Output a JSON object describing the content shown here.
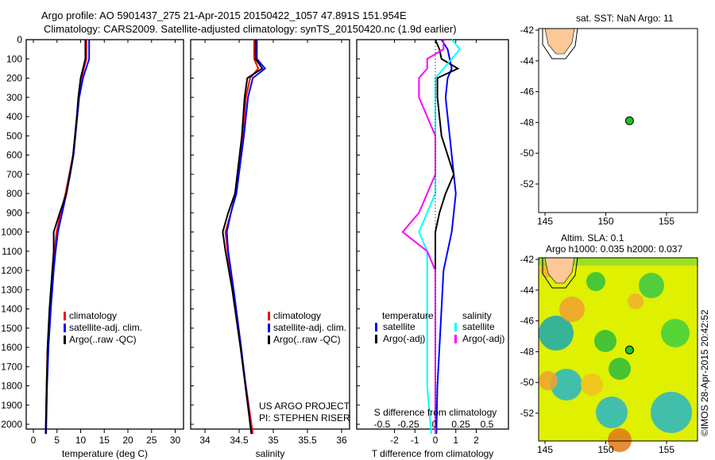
{
  "title_line1": "Argo profile: AO 5901437_275 21-Apr-2015 20150422_1057 47.891S 151.954E",
  "title_line2": "Climatology: CARS2009. Satellite-adjusted climatology: synTS_20150420.nc (1.9d earlier)",
  "project_line1": "US ARGO PROJECT",
  "project_line2": "PI: STEPHEN RISER",
  "sst_title": "sat. SST: NaN Argo: 11",
  "sla_title1": "Altim. SLA: 0.1",
  "sla_title2": "Argo h1000: 0.035 h2000: 0.037",
  "credit": "©IMOS 28-Apr-2015 20:42:52",
  "colors": {
    "climatology": "#ff0000",
    "satellite": "#0000ff",
    "argo": "#000000",
    "sal_satellite": "#00ffff",
    "sal_argo": "#ff00ff",
    "land": "#fcc896"
  },
  "chart_data": [
    {
      "type": "line",
      "xlabel": "temperature (deg C)",
      "ylabel": "",
      "xlim": [
        -1,
        31
      ],
      "ylim": [
        2050,
        0
      ],
      "xticks": [
        "0",
        "5",
        "10",
        "15",
        "20",
        "25",
        "30"
      ],
      "xtick_values": [
        0,
        5,
        10,
        15,
        20,
        25,
        30
      ],
      "yticks": [
        "0",
        "100",
        "200",
        "300",
        "400",
        "500",
        "600",
        "700",
        "800",
        "900",
        "1000",
        "1100",
        "1200",
        "1300",
        "1400",
        "1500",
        "1600",
        "1700",
        "1800",
        "1900",
        "2000"
      ],
      "legend": [
        "climatology",
        "satellite-adj. clim.",
        "Argo(..raw -QC)"
      ],
      "depth": [
        0,
        100,
        200,
        300,
        400,
        500,
        600,
        700,
        800,
        900,
        1000,
        1100,
        1200,
        1400,
        1600,
        1800,
        2050
      ],
      "series": [
        {
          "name": "climatology",
          "values": [
            11.2,
            11.2,
            10.2,
            9.6,
            9.2,
            8.8,
            8.4,
            7.6,
            6.8,
            5.8,
            4.9,
            4.5,
            4.1,
            3.5,
            3.0,
            2.8,
            2.6
          ]
        },
        {
          "name": "satellite-adj. clim.",
          "values": [
            11.8,
            11.8,
            10.5,
            9.7,
            9.3,
            8.9,
            8.5,
            7.8,
            7.0,
            6.1,
            5.2,
            4.7,
            4.3,
            3.7,
            3.2,
            2.9,
            2.7
          ]
        },
        {
          "name": "Argo(..raw -QC)",
          "values": [
            11.0,
            11.0,
            10.0,
            9.5,
            9.2,
            8.8,
            8.4,
            7.7,
            7.0,
            5.6,
            4.3,
            4.3,
            4.0,
            3.4,
            3.0,
            2.8,
            2.6
          ]
        }
      ]
    },
    {
      "type": "line",
      "xlabel": "salinity",
      "xlim": [
        33.9,
        36.1
      ],
      "ylim": [
        2050,
        0
      ],
      "xticks": [
        "34",
        "34.5",
        "35",
        "35.5",
        "36"
      ],
      "xtick_values": [
        34,
        34.5,
        35,
        35.5,
        36
      ],
      "legend": [
        "climatology",
        "satellite-adj. clim.",
        "Argo(..raw -QC)"
      ],
      "depth": [
        0,
        100,
        150,
        200,
        300,
        500,
        800,
        900,
        1000,
        1100,
        1300,
        1600,
        2050
      ],
      "series": [
        {
          "name": "climatology",
          "values": [
            34.72,
            34.72,
            34.78,
            34.66,
            34.6,
            34.55,
            34.45,
            34.38,
            34.3,
            34.33,
            34.4,
            34.52,
            34.7
          ]
        },
        {
          "name": "satellite-adj. clim.",
          "values": [
            34.76,
            34.76,
            34.88,
            34.7,
            34.63,
            34.57,
            34.46,
            34.38,
            34.32,
            34.34,
            34.42,
            34.53,
            34.68
          ]
        },
        {
          "name": "Argo(..raw -QC)",
          "values": [
            34.74,
            34.74,
            34.84,
            34.62,
            34.58,
            34.54,
            34.44,
            34.34,
            34.26,
            34.3,
            34.4,
            34.52,
            34.68
          ]
        }
      ]
    },
    {
      "type": "line",
      "xlabel": "T difference from climatology",
      "x2label": "S difference from climatology",
      "xlim": [
        -2.8,
        2.8
      ],
      "ylim": [
        2050,
        0
      ],
      "xticks": [
        "-2",
        "-1",
        "0",
        "1",
        "2"
      ],
      "xtick_values": [
        -2,
        -1,
        0,
        1,
        2
      ],
      "x2ticks": [
        "-0.5",
        "-0.25",
        "0",
        "0.25",
        "0.5"
      ],
      "legend_headers": [
        "temperature",
        "salinity"
      ],
      "legend": [
        "satellite",
        "Argo(-adj)",
        "satellite",
        "Argo(-adj)"
      ],
      "depth": [
        0,
        50,
        100,
        150,
        200,
        300,
        400,
        500,
        600,
        700,
        800,
        900,
        1000,
        1100,
        1200,
        1400,
        1600,
        1800,
        2050
      ],
      "series": [
        {
          "name": "T satellite",
          "values": [
            0.3,
            0.6,
            0.7,
            0.8,
            0.6,
            0.5,
            0.6,
            0.7,
            0.8,
            0.9,
            1.0,
            0.9,
            0.8,
            0.6,
            0.4,
            0.3,
            0.2,
            0.1,
            0.05
          ]
        },
        {
          "name": "T Argo(-adj)",
          "values": [
            0,
            0.2,
            0.3,
            1.1,
            0.1,
            0.1,
            0.2,
            0.3,
            0.6,
            0.9,
            0.5,
            0.2,
            0.0,
            0.0,
            0.0,
            0.0,
            0.0,
            0.0,
            0.0
          ]
        },
        {
          "name": "S satellite",
          "values": [
            0.2,
            0.3,
            0.2,
            0.1,
            0.0,
            0.0,
            0.0,
            0.0,
            0.0,
            0.0,
            0.0,
            -0.1,
            -0.2,
            -0.1,
            -0.1,
            -0.1,
            -0.1,
            -0.1,
            -0.05
          ]
        },
        {
          "name": "S Argo(-adj)",
          "values": [
            0.1,
            0.1,
            -0.1,
            -0.1,
            -0.2,
            -0.2,
            -0.1,
            0.0,
            0.0,
            0.0,
            -0.1,
            -0.2,
            -0.4,
            -0.1,
            0.0,
            0.0,
            0.0,
            0.0,
            0.0
          ]
        }
      ]
    },
    {
      "type": "scatter",
      "title": "sat. SST: NaN Argo: 11",
      "xticks": [
        "145",
        "150",
        "155"
      ],
      "yticks": [
        "-42",
        "-44",
        "-46",
        "-48",
        "-50",
        "-52"
      ],
      "point": {
        "lon": 151.954,
        "lat": -47.891
      }
    },
    {
      "type": "heatmap",
      "title": "Altim. SLA: 0.1",
      "xticks": [
        "145",
        "150",
        "155"
      ],
      "yticks": [
        "-42",
        "-44",
        "-46",
        "-48",
        "-50",
        "-52"
      ],
      "point": {
        "lon": 151.954,
        "lat": -47.891
      }
    }
  ]
}
